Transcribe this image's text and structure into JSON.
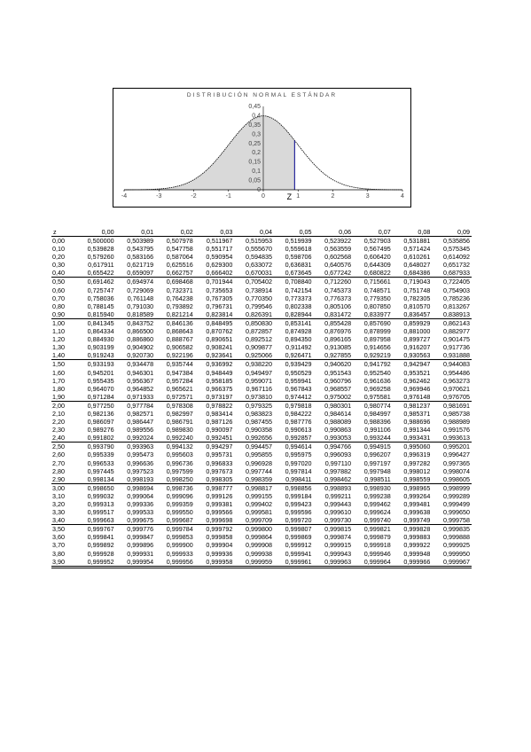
{
  "chart": {
    "title": "DISTRIBUCIÓN NORMAL ESTÁNDAR",
    "y_ticks": [
      "0,45",
      "0,4",
      "0,35",
      "0,3",
      "0,25",
      "0,2",
      "0,15",
      "0,1",
      "0,05",
      "0"
    ],
    "x_ticks": [
      "-4",
      "-3",
      "-2",
      "-1",
      "0",
      "1",
      "2",
      "3",
      "4"
    ],
    "z_label": "Z",
    "shaded_to": 0.9,
    "curve_color": "#000000",
    "fill_color": "#d9d9d9",
    "marker_color": "#00008b"
  },
  "table": {
    "headers": [
      "z",
      "0,00",
      "0,01",
      "0,02",
      "0,03",
      "0,04",
      "0,05",
      "0,06",
      "0,07",
      "0,08",
      "0,09"
    ],
    "rows": [
      [
        "0,00",
        "0,500000",
        "0,503989",
        "0,507978",
        "0,511967",
        "0,515953",
        "0,519939",
        "0,523922",
        "0,527903",
        "0,531881",
        "0,535856"
      ],
      [
        "0,10",
        "0,539828",
        "0,543795",
        "0,547758",
        "0,551717",
        "0,555670",
        "0,559618",
        "0,563559",
        "0,567495",
        "0,571424",
        "0,575345"
      ],
      [
        "0,20",
        "0,579260",
        "0,583166",
        "0,587064",
        "0,590954",
        "0,594835",
        "0,598706",
        "0,602568",
        "0,606420",
        "0,610261",
        "0,614092"
      ],
      [
        "0,30",
        "0,617911",
        "0,621719",
        "0,625516",
        "0,629300",
        "0,633072",
        "0,636831",
        "0,640576",
        "0,644309",
        "0,648027",
        "0,651732"
      ],
      [
        "0,40",
        "0,655422",
        "0,659097",
        "0,662757",
        "0,666402",
        "0,670031",
        "0,673645",
        "0,677242",
        "0,680822",
        "0,684386",
        "0,687933"
      ],
      [
        "0,50",
        "0,691462",
        "0,694974",
        "0,698468",
        "0,701944",
        "0,705402",
        "0,708840",
        "0,712260",
        "0,715661",
        "0,719043",
        "0,722405"
      ],
      [
        "0,60",
        "0,725747",
        "0,729069",
        "0,732371",
        "0,735653",
        "0,738914",
        "0,742154",
        "0,745373",
        "0,748571",
        "0,751748",
        "0,754903"
      ],
      [
        "0,70",
        "0,758036",
        "0,761148",
        "0,764238",
        "0,767305",
        "0,770350",
        "0,773373",
        "0,776373",
        "0,779350",
        "0,782305",
        "0,785236"
      ],
      [
        "0,80",
        "0,788145",
        "0,791030",
        "0,793892",
        "0,796731",
        "0,799546",
        "0,802338",
        "0,805106",
        "0,807850",
        "0,810570",
        "0,813267"
      ],
      [
        "0,90",
        "0,815940",
        "0,818589",
        "0,821214",
        "0,823814",
        "0,826391",
        "0,828944",
        "0,831472",
        "0,833977",
        "0,836457",
        "0,838913"
      ],
      [
        "1,00",
        "0,841345",
        "0,843752",
        "0,846136",
        "0,848495",
        "0,850830",
        "0,853141",
        "0,855428",
        "0,857690",
        "0,859929",
        "0,862143"
      ],
      [
        "1,10",
        "0,864334",
        "0,866500",
        "0,868643",
        "0,870762",
        "0,872857",
        "0,874928",
        "0,876976",
        "0,878999",
        "0,881000",
        "0,882977"
      ],
      [
        "1,20",
        "0,884930",
        "0,886860",
        "0,888767",
        "0,890651",
        "0,892512",
        "0,894350",
        "0,896165",
        "0,897958",
        "0,899727",
        "0,901475"
      ],
      [
        "1,30",
        "0,903199",
        "0,904902",
        "0,906582",
        "0,908241",
        "0,909877",
        "0,911492",
        "0,913085",
        "0,914656",
        "0,916207",
        "0,917736"
      ],
      [
        "1,40",
        "0,919243",
        "0,920730",
        "0,922196",
        "0,923641",
        "0,925066",
        "0,926471",
        "0,927855",
        "0,929219",
        "0,930563",
        "0,931888"
      ],
      [
        "1,50",
        "0,933193",
        "0,934478",
        "0,935744",
        "0,936992",
        "0,938220",
        "0,939429",
        "0,940620",
        "0,941792",
        "0,942947",
        "0,944083"
      ],
      [
        "1,60",
        "0,945201",
        "0,946301",
        "0,947384",
        "0,948449",
        "0,949497",
        "0,950529",
        "0,951543",
        "0,952540",
        "0,953521",
        "0,954486"
      ],
      [
        "1,70",
        "0,955435",
        "0,956367",
        "0,957284",
        "0,958185",
        "0,959071",
        "0,959941",
        "0,960796",
        "0,961636",
        "0,962462",
        "0,963273"
      ],
      [
        "1,80",
        "0,964070",
        "0,964852",
        "0,965621",
        "0,966375",
        "0,967116",
        "0,967843",
        "0,968557",
        "0,969258",
        "0,969946",
        "0,970621"
      ],
      [
        "1,90",
        "0,971284",
        "0,971933",
        "0,972571",
        "0,973197",
        "0,973810",
        "0,974412",
        "0,975002",
        "0,975581",
        "0,976148",
        "0,976705"
      ],
      [
        "2,00",
        "0,977250",
        "0,977784",
        "0,978308",
        "0,978822",
        "0,979325",
        "0,979818",
        "0,980301",
        "0,980774",
        "0,981237",
        "0,981691"
      ],
      [
        "2,10",
        "0,982136",
        "0,982571",
        "0,982997",
        "0,983414",
        "0,983823",
        "0,984222",
        "0,984614",
        "0,984997",
        "0,985371",
        "0,985738"
      ],
      [
        "2,20",
        "0,986097",
        "0,986447",
        "0,986791",
        "0,987126",
        "0,987455",
        "0,987776",
        "0,988089",
        "0,988396",
        "0,988696",
        "0,988989"
      ],
      [
        "2,30",
        "0,989276",
        "0,989556",
        "0,989830",
        "0,990097",
        "0,990358",
        "0,990613",
        "0,990863",
        "0,991106",
        "0,991344",
        "0,991576"
      ],
      [
        "2,40",
        "0,991802",
        "0,992024",
        "0,992240",
        "0,992451",
        "0,992656",
        "0,992857",
        "0,993053",
        "0,993244",
        "0,993431",
        "0,993613"
      ],
      [
        "2,50",
        "0,993790",
        "0,993963",
        "0,994132",
        "0,994297",
        "0,994457",
        "0,994614",
        "0,994766",
        "0,994915",
        "0,995060",
        "0,995201"
      ],
      [
        "2,60",
        "0,995339",
        "0,995473",
        "0,995603",
        "0,995731",
        "0,995855",
        "0,995975",
        "0,996093",
        "0,996207",
        "0,996319",
        "0,996427"
      ],
      [
        "2,70",
        "0,996533",
        "0,996636",
        "0,996736",
        "0,996833",
        "0,996928",
        "0,997020",
        "0,997110",
        "0,997197",
        "0,997282",
        "0,997365"
      ],
      [
        "2,80",
        "0,997445",
        "0,997523",
        "0,997599",
        "0,997673",
        "0,997744",
        "0,997814",
        "0,997882",
        "0,997948",
        "0,998012",
        "0,998074"
      ],
      [
        "2,90",
        "0,998134",
        "0,998193",
        "0,998250",
        "0,998305",
        "0,998359",
        "0,998411",
        "0,998462",
        "0,998511",
        "0,998559",
        "0,998605"
      ],
      [
        "3,00",
        "0,998650",
        "0,998694",
        "0,998736",
        "0,998777",
        "0,998817",
        "0,998856",
        "0,998893",
        "0,998930",
        "0,998965",
        "0,998999"
      ],
      [
        "3,10",
        "0,999032",
        "0,999064",
        "0,999096",
        "0,999126",
        "0,999155",
        "0,999184",
        "0,999211",
        "0,999238",
        "0,999264",
        "0,999289"
      ],
      [
        "3,20",
        "0,999313",
        "0,999336",
        "0,999359",
        "0,999381",
        "0,999402",
        "0,999423",
        "0,999443",
        "0,999462",
        "0,999481",
        "0,999499"
      ],
      [
        "3,30",
        "0,999517",
        "0,999533",
        "0,999550",
        "0,999566",
        "0,999581",
        "0,999596",
        "0,999610",
        "0,999624",
        "0,999638",
        "0,999650"
      ],
      [
        "3,40",
        "0,999663",
        "0,999675",
        "0,999687",
        "0,999698",
        "0,999709",
        "0,999720",
        "0,999730",
        "0,999740",
        "0,999749",
        "0,999758"
      ],
      [
        "3,50",
        "0,999767",
        "0,999776",
        "0,999784",
        "0,999792",
        "0,999800",
        "0,999807",
        "0,999815",
        "0,999821",
        "0,999828",
        "0,999835"
      ],
      [
        "3,60",
        "0,999841",
        "0,999847",
        "0,999853",
        "0,999858",
        "0,999864",
        "0,999869",
        "0,999874",
        "0,999879",
        "0,999883",
        "0,999888"
      ],
      [
        "3,70",
        "0,999892",
        "0,999896",
        "0,999900",
        "0,999904",
        "0,999908",
        "0,999912",
        "0,999915",
        "0,999918",
        "0,999922",
        "0,999925"
      ],
      [
        "3,80",
        "0,999928",
        "0,999931",
        "0,999933",
        "0,999936",
        "0,999938",
        "0,999941",
        "0,999943",
        "0,999946",
        "0,999948",
        "0,999950"
      ],
      [
        "3,90",
        "0,999952",
        "0,999954",
        "0,999956",
        "0,999958",
        "0,999959",
        "0,999961",
        "0,999963",
        "0,999964",
        "0,999966",
        "0,999967"
      ]
    ]
  }
}
